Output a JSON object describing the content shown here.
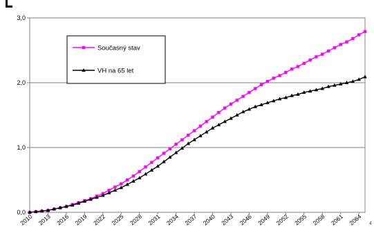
{
  "page_number": "4",
  "chart_data": {
    "type": "line",
    "title": "",
    "xlabel": "",
    "ylabel": "",
    "ylim": [
      0,
      3
    ],
    "grid": "horizontal",
    "legend_position": "top-left",
    "y_ticks": [
      "0,0",
      "1,0",
      "2,0",
      "3,0"
    ],
    "x_tick_labels": [
      "2010",
      "2013",
      "2016",
      "2019",
      "2022",
      "2025",
      "2028",
      "2031",
      "2034",
      "2037",
      "2040",
      "2043",
      "2046",
      "2049",
      "2052",
      "2055",
      "2058",
      "2061",
      "2064"
    ],
    "x": [
      2010,
      2011,
      2012,
      2013,
      2014,
      2015,
      2016,
      2017,
      2018,
      2019,
      2020,
      2021,
      2022,
      2023,
      2024,
      2025,
      2026,
      2027,
      2028,
      2029,
      2030,
      2031,
      2032,
      2033,
      2034,
      2035,
      2036,
      2037,
      2038,
      2039,
      2040,
      2041,
      2042,
      2043,
      2044,
      2045,
      2046,
      2047,
      2048,
      2049,
      2050,
      2051,
      2052,
      2053,
      2054,
      2055,
      2056,
      2057,
      2058,
      2059,
      2060,
      2061,
      2062,
      2063,
      2064,
      2065
    ],
    "series": [
      {
        "name": "Současný stav",
        "color": "#ff00ff",
        "marker": "square",
        "values": [
          0.0,
          0.01,
          0.02,
          0.03,
          0.05,
          0.07,
          0.09,
          0.12,
          0.15,
          0.18,
          0.21,
          0.25,
          0.29,
          0.34,
          0.39,
          0.44,
          0.5,
          0.56,
          0.63,
          0.7,
          0.77,
          0.84,
          0.91,
          0.98,
          1.05,
          1.12,
          1.19,
          1.26,
          1.33,
          1.4,
          1.47,
          1.54,
          1.61,
          1.67,
          1.73,
          1.79,
          1.85,
          1.91,
          1.97,
          2.02,
          2.07,
          2.11,
          2.16,
          2.21,
          2.25,
          2.3,
          2.35,
          2.4,
          2.44,
          2.49,
          2.54,
          2.59,
          2.63,
          2.68,
          2.74,
          2.79
        ]
      },
      {
        "name": "VH na 65 let",
        "color": "#000000",
        "marker": "triangle",
        "values": [
          0.0,
          0.01,
          0.02,
          0.03,
          0.05,
          0.07,
          0.09,
          0.11,
          0.14,
          0.17,
          0.2,
          0.23,
          0.26,
          0.3,
          0.34,
          0.38,
          0.43,
          0.48,
          0.53,
          0.59,
          0.65,
          0.71,
          0.78,
          0.85,
          0.92,
          0.99,
          1.06,
          1.12,
          1.18,
          1.24,
          1.3,
          1.35,
          1.4,
          1.45,
          1.5,
          1.55,
          1.59,
          1.63,
          1.66,
          1.69,
          1.72,
          1.75,
          1.77,
          1.8,
          1.82,
          1.85,
          1.87,
          1.89,
          1.91,
          1.94,
          1.96,
          1.98,
          2.0,
          2.02,
          2.05,
          2.09
        ]
      }
    ]
  }
}
